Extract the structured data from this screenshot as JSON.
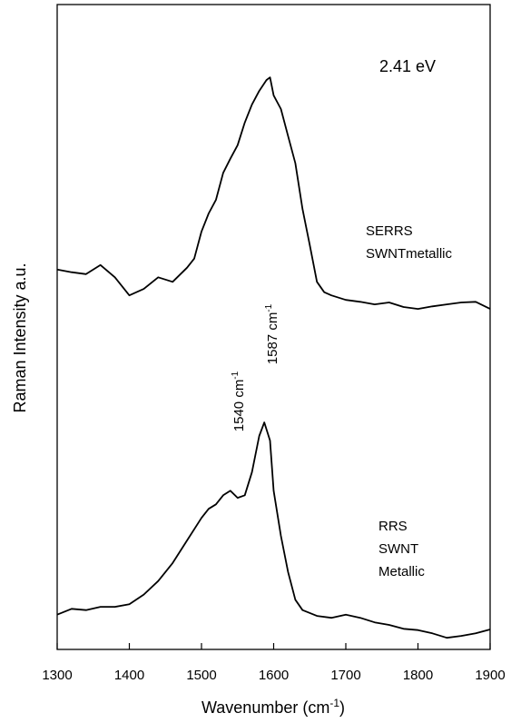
{
  "chart_data": {
    "type": "line",
    "xlabel": [
      "Wavenumber (cm",
      "-1",
      ")"
    ],
    "ylabel": "Raman Intensity a.u.",
    "xlim": [
      1300,
      1900
    ],
    "xticks": [
      1300,
      1400,
      1500,
      1600,
      1700,
      1800,
      1900
    ],
    "ylim": [
      0,
      100
    ],
    "color": "#000000",
    "annotations": [
      {
        "text": "2.41 eV"
      },
      {
        "text": "1540 cm",
        "sup": "-1"
      },
      {
        "text": "1587 cm",
        "sup": "-1"
      }
    ],
    "series": [
      {
        "name": [
          "SERRS",
          "SWNTmetallic"
        ],
        "x": [
          1300,
          1320,
          1340,
          1360,
          1380,
          1400,
          1420,
          1440,
          1460,
          1480,
          1490,
          1500,
          1510,
          1520,
          1530,
          1540,
          1550,
          1560,
          1570,
          1580,
          1590,
          1595,
          1600,
          1610,
          1620,
          1630,
          1640,
          1650,
          1660,
          1670,
          1680,
          1700,
          1720,
          1740,
          1760,
          1780,
          1800,
          1820,
          1840,
          1860,
          1880,
          1900
        ],
        "values": [
          58.9,
          58.5,
          58.2,
          59.6,
          57.7,
          54.9,
          55.9,
          57.7,
          57.0,
          59.2,
          60.6,
          64.8,
          67.6,
          69.7,
          73.9,
          76.1,
          78.2,
          81.7,
          84.5,
          86.6,
          88.3,
          88.7,
          85.9,
          83.8,
          79.6,
          75.4,
          68.3,
          62.7,
          57.0,
          55.4,
          54.9,
          54.2,
          53.9,
          53.5,
          53.8,
          53.1,
          52.8,
          53.2,
          53.5,
          53.8,
          53.9,
          52.8
        ]
      },
      {
        "name": [
          "RRS",
          "SWNT",
          "Metallic"
        ],
        "x": [
          1300,
          1320,
          1340,
          1360,
          1380,
          1400,
          1420,
          1440,
          1460,
          1480,
          1500,
          1510,
          1520,
          1530,
          1540,
          1550,
          1560,
          1570,
          1580,
          1587,
          1595,
          1600,
          1610,
          1620,
          1630,
          1640,
          1660,
          1680,
          1700,
          1720,
          1740,
          1760,
          1780,
          1800,
          1820,
          1840,
          1860,
          1880,
          1900
        ],
        "values": [
          5.4,
          6.3,
          6.1,
          6.6,
          6.6,
          7.0,
          8.5,
          10.6,
          13.4,
          16.9,
          20.4,
          21.8,
          22.5,
          23.9,
          24.6,
          23.5,
          23.9,
          27.5,
          33.1,
          35.2,
          32.4,
          24.6,
          17.6,
          12.0,
          7.7,
          6.1,
          5.2,
          4.9,
          5.4,
          4.9,
          4.2,
          3.8,
          3.2,
          3.0,
          2.5,
          1.8,
          2.1,
          2.5,
          3.1
        ]
      }
    ]
  }
}
